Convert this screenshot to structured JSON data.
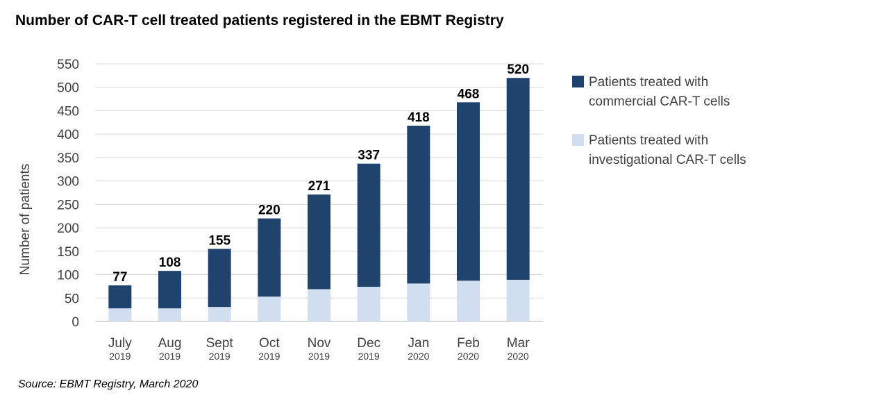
{
  "source": "Source: EBMT Registry, March 2020",
  "colors": {
    "commercial": "#1f436d",
    "investigational": "#d0def0",
    "grid": "#d9d9d9",
    "axis": "#bfbfbf"
  },
  "chart_data": {
    "type": "bar",
    "stacked": true,
    "title": "Number of CAR-T cell treated patients registered in the EBMT Registry",
    "xlabel": "",
    "ylabel": "Number of patients",
    "ylim": [
      0,
      550
    ],
    "yticks": [
      "0",
      "50",
      "100",
      "150",
      "200",
      "250",
      "300",
      "350",
      "400",
      "450",
      "500",
      "550"
    ],
    "grid": true,
    "legend_position": "right",
    "categories": [
      "July",
      "Aug",
      "Sept",
      "Oct",
      "Nov",
      "Dec",
      "Jan",
      "Feb",
      "Mar"
    ],
    "category_years": [
      "2019",
      "2019",
      "2019",
      "2019",
      "2019",
      "2019",
      "2020",
      "2020",
      "2020"
    ],
    "series": [
      {
        "name": "Patients treated with investigational CAR-T cells",
        "legend_lines": [
          "Patients treated with",
          "investigational CAR-T cells"
        ],
        "values": [
          28,
          28,
          31,
          53,
          69,
          74,
          81,
          87,
          89
        ]
      },
      {
        "name": "Patients treated with commercial CAR-T cells",
        "legend_lines": [
          "Patients treated with",
          "commercial CAR-T cells"
        ],
        "values": [
          49,
          80,
          124,
          167,
          202,
          263,
          337,
          381,
          431
        ]
      }
    ],
    "totals": [
      77,
      108,
      155,
      220,
      271,
      337,
      418,
      468,
      520
    ]
  }
}
